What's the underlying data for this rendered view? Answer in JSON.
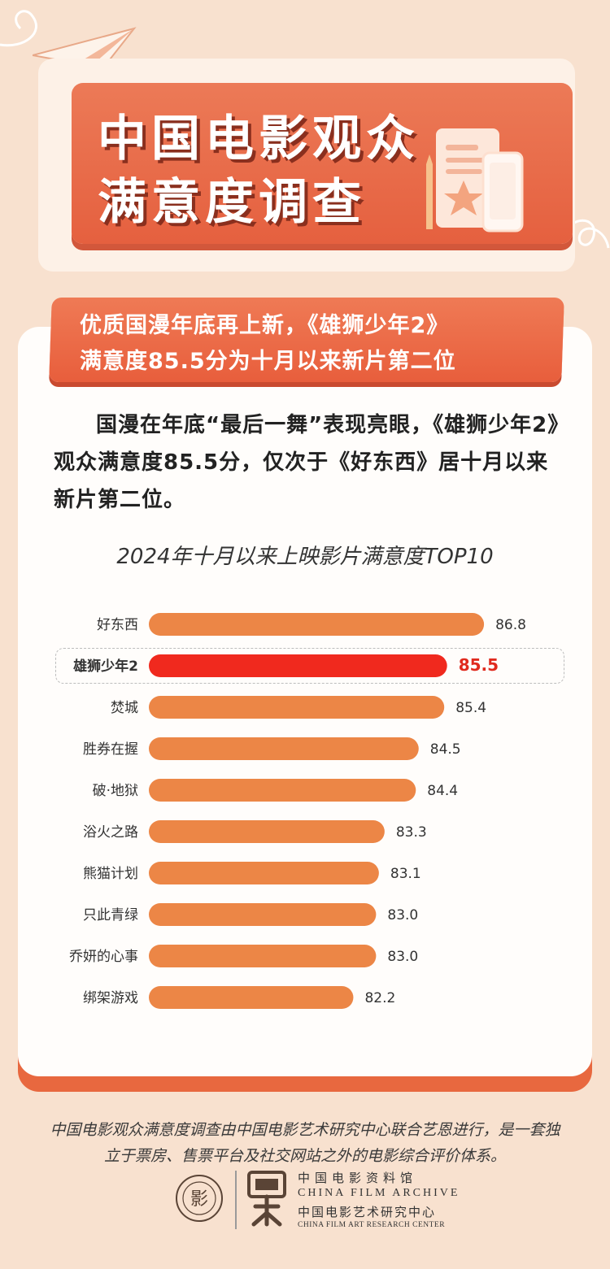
{
  "header": {
    "title_line1": "中国电影观众",
    "title_line2": "满意度调查"
  },
  "subtitle": {
    "line1": "优质国漫年底再上新，《雄狮少年2》",
    "line2": "满意度85.5分为十月以来新片第二位"
  },
  "body_text": "国漫在年底“最后一舞”表现亮眼，《雄狮少年2》观众满意度85.5分，仅次于《好东西》居十月以来新片第二位。",
  "chart_data": {
    "type": "bar",
    "orientation": "horizontal",
    "title": "2024年十月以来上映影片满意度TOP10",
    "categories": [
      "好东西",
      "雄狮少年2",
      "焚城",
      "胜券在握",
      "破·地狱",
      "浴火之路",
      "熊猫计划",
      "只此青绿",
      "乔妍的心事",
      "绑架游戏"
    ],
    "values": [
      86.8,
      85.5,
      85.4,
      84.5,
      84.4,
      83.3,
      83.1,
      83.0,
      83.0,
      82.2
    ],
    "value_labels": [
      "86.8",
      "85.5",
      "85.4",
      "84.5",
      "84.4",
      "83.3",
      "83.1",
      "83.0",
      "83.0",
      "82.2"
    ],
    "highlight_category": "雄狮少年2",
    "colors": {
      "bar": "#ec8646",
      "highlight": "#f0291e",
      "highlight_text": "#e02a1e",
      "label": "#333333"
    },
    "xlabel": "",
    "ylabel": "",
    "xlim": [
      75,
      88
    ],
    "grid": false
  },
  "footnote": {
    "line1": "中国电影观众满意度调查由中国电影艺术研究中心联合艺恩进行，是一套独",
    "line2": "立于票房、售票平台及社交网站之外的电影综合评价体系。"
  },
  "org": {
    "cn_name": "中国电影资料馆",
    "en_name": "CHINA FILM ARCHIVE",
    "cn_name2": "中国电影艺术研究中心",
    "en_name2": "CHINA FILM ART RESEARCH CENTER"
  },
  "colors": {
    "accent": "#e8683f",
    "background": "#f8e1cf"
  }
}
